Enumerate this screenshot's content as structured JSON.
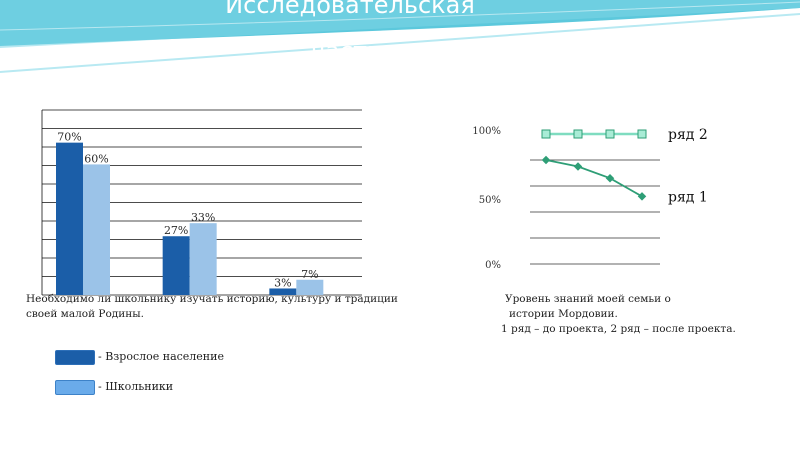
{
  "slide": {
    "title_line1": "Исследовательская",
    "title_line2": "часть."
  },
  "colors": {
    "header_teal": "#4fc0d8",
    "adults": "#1b5ea8",
    "students": "#9bc3e8",
    "series2_line": "#7fdcc0",
    "series1_line": "#2e9e76"
  },
  "chart_data": [
    {
      "type": "bar",
      "title": "",
      "categories": [
        "",
        "",
        ""
      ],
      "series": [
        {
          "name": "Взрослое население",
          "values": [
            70,
            27,
            3
          ],
          "labels": [
            "70%",
            "27%",
            "3%"
          ]
        },
        {
          "name": "Школьники",
          "values": [
            60,
            33,
            7
          ],
          "labels": [
            "60%",
            "33%",
            "7%"
          ]
        }
      ],
      "ylim": [
        0,
        85
      ],
      "grid": true,
      "legend_position": "bottom-left",
      "caption": "Необходимо ли школьнику изучать историю, культуру и традиции своей малой Родины."
    },
    {
      "type": "line",
      "title": "",
      "x": [
        1,
        2,
        3,
        4
      ],
      "series": [
        {
          "name": "ряд 2",
          "values": [
            100,
            100,
            100,
            100
          ]
        },
        {
          "name": "ряд 1",
          "values": [
            80,
            75,
            66,
            52
          ]
        }
      ],
      "y_tick_labels": [
        "0%",
        "50%",
        "100%"
      ],
      "ylim": [
        0,
        100
      ],
      "grid": true,
      "legend_position": "right",
      "caption": [
        "Уровень знаний моей семьи о",
        "истории Мордовии.",
        "1 ряд – до проекта, 2 ряд – после проекта."
      ]
    }
  ],
  "legend": [
    {
      "label": "- Взрослое население"
    },
    {
      "label": "- Школьники"
    }
  ]
}
